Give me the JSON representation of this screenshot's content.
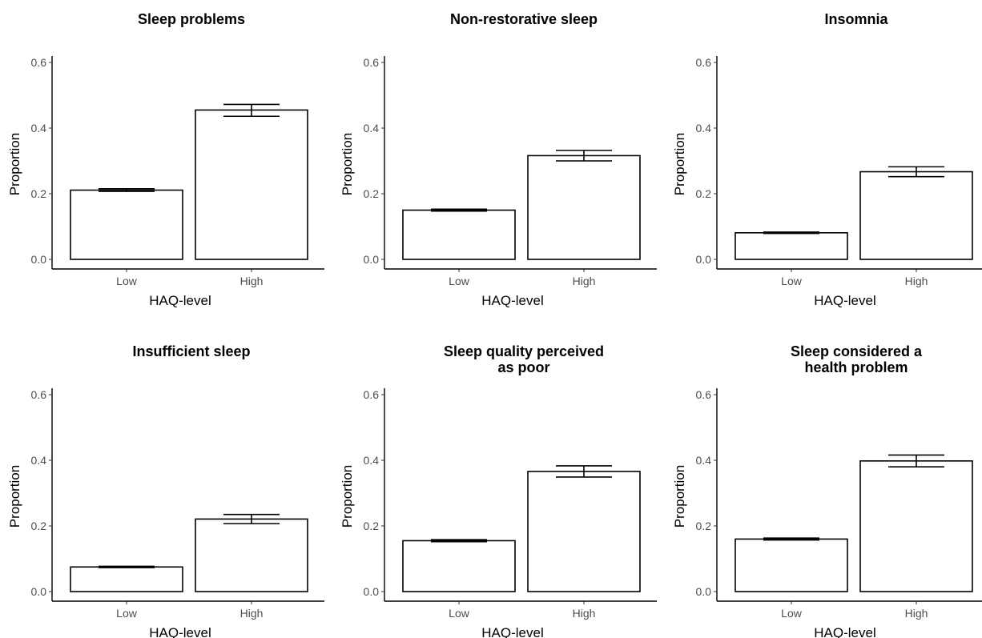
{
  "chart_data": [
    {
      "type": "bar",
      "title": [
        "Sleep problems"
      ],
      "xlabel": "HAQ-level",
      "ylabel": "Proportion",
      "categories": [
        "Low",
        "High"
      ],
      "values": [
        0.211,
        0.455
      ],
      "error_low": [
        0.207,
        0.436
      ],
      "error_high": [
        0.215,
        0.472
      ],
      "ylim": [
        0,
        0.62
      ],
      "yticks": [
        "0.0",
        "0.2",
        "0.4",
        "0.6"
      ],
      "bar_fill": "#ffffff",
      "bar_stroke": "#000000"
    },
    {
      "type": "bar",
      "title": [
        "Non-restorative sleep"
      ],
      "xlabel": "HAQ-level",
      "ylabel": "Proportion",
      "categories": [
        "Low",
        "High"
      ],
      "values": [
        0.15,
        0.316
      ],
      "error_low": [
        0.147,
        0.3
      ],
      "error_high": [
        0.153,
        0.332
      ],
      "ylim": [
        0,
        0.62
      ],
      "yticks": [
        "0.0",
        "0.2",
        "0.4",
        "0.6"
      ],
      "bar_fill": "#ffffff",
      "bar_stroke": "#000000"
    },
    {
      "type": "bar",
      "title": [
        "Insomnia"
      ],
      "xlabel": "HAQ-level",
      "ylabel": "Proportion",
      "categories": [
        "Low",
        "High"
      ],
      "values": [
        0.081,
        0.267
      ],
      "error_low": [
        0.079,
        0.252
      ],
      "error_high": [
        0.083,
        0.282
      ],
      "ylim": [
        0,
        0.62
      ],
      "yticks": [
        "0.0",
        "0.2",
        "0.4",
        "0.6"
      ],
      "bar_fill": "#ffffff",
      "bar_stroke": "#000000"
    },
    {
      "type": "bar",
      "title": [
        "Insufficient sleep"
      ],
      "xlabel": "HAQ-level",
      "ylabel": "Proportion",
      "categories": [
        "Low",
        "High"
      ],
      "values": [
        0.075,
        0.221
      ],
      "error_low": [
        0.073,
        0.207
      ],
      "error_high": [
        0.077,
        0.235
      ],
      "ylim": [
        0,
        0.62
      ],
      "yticks": [
        "0.0",
        "0.2",
        "0.4",
        "0.6"
      ],
      "bar_fill": "#ffffff",
      "bar_stroke": "#000000"
    },
    {
      "type": "bar",
      "title": [
        "Sleep quality perceived",
        "as poor"
      ],
      "xlabel": "HAQ-level",
      "ylabel": "Proportion",
      "categories": [
        "Low",
        "High"
      ],
      "values": [
        0.155,
        0.366
      ],
      "error_low": [
        0.152,
        0.349
      ],
      "error_high": [
        0.158,
        0.383
      ],
      "ylim": [
        0,
        0.62
      ],
      "yticks": [
        "0.0",
        "0.2",
        "0.4",
        "0.6"
      ],
      "bar_fill": "#ffffff",
      "bar_stroke": "#000000"
    },
    {
      "type": "bar",
      "title": [
        "Sleep considered a",
        "health problem"
      ],
      "xlabel": "HAQ-level",
      "ylabel": "Proportion",
      "categories": [
        "Low",
        "High"
      ],
      "values": [
        0.16,
        0.398
      ],
      "error_low": [
        0.157,
        0.38
      ],
      "error_high": [
        0.163,
        0.416
      ],
      "ylim": [
        0,
        0.62
      ],
      "yticks": [
        "0.0",
        "0.2",
        "0.4",
        "0.6"
      ],
      "bar_fill": "#ffffff",
      "bar_stroke": "#000000"
    }
  ]
}
